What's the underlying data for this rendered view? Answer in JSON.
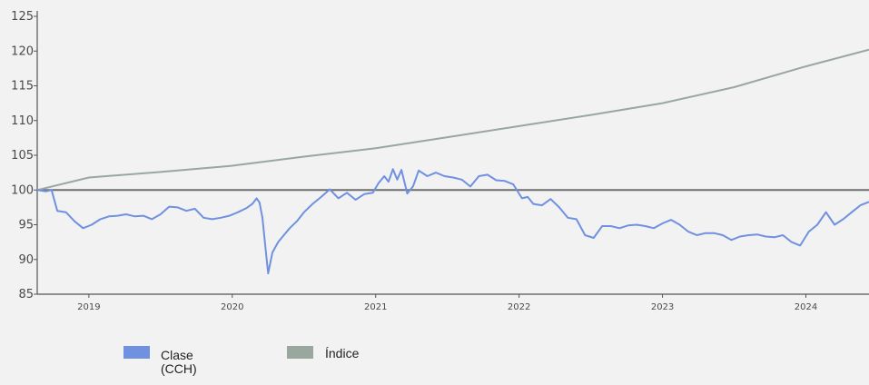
{
  "chart_data": {
    "type": "line",
    "title": "",
    "xlabel": "",
    "ylabel": "",
    "xlim": [
      2018.64,
      2024.44
    ],
    "ylim": [
      85,
      125
    ],
    "y_ticks": [
      "85",
      "90",
      "95",
      "100",
      "105",
      "110",
      "115",
      "120",
      "125"
    ],
    "x_ticks": [
      "2019",
      "2020",
      "2021",
      "2022",
      "2023",
      "2024"
    ],
    "x_tick_values": [
      2019,
      2020,
      2021,
      2022,
      2023,
      2024
    ],
    "grid": false,
    "legend_position": "bottom-left",
    "reference_line": 100,
    "series": [
      {
        "name": "Clase (CCH)",
        "color": "#7090e0",
        "x": [
          2018.64,
          2018.7,
          2018.74,
          2018.78,
          2018.84,
          2018.9,
          2018.96,
          2019.02,
          2019.08,
          2019.14,
          2019.2,
          2019.26,
          2019.32,
          2019.38,
          2019.44,
          2019.5,
          2019.56,
          2019.62,
          2019.68,
          2019.74,
          2019.8,
          2019.86,
          2019.92,
          2019.98,
          2020.04,
          2020.1,
          2020.14,
          2020.17,
          2020.19,
          2020.21,
          2020.23,
          2020.25,
          2020.28,
          2020.32,
          2020.36,
          2020.4,
          2020.45,
          2020.5,
          2020.56,
          2020.62,
          2020.68,
          2020.74,
          2020.8,
          2020.86,
          2020.92,
          2020.98,
          2021.02,
          2021.06,
          2021.09,
          2021.12,
          2021.15,
          2021.18,
          2021.22,
          2021.26,
          2021.3,
          2021.36,
          2021.42,
          2021.48,
          2021.54,
          2021.6,
          2021.66,
          2021.72,
          2021.78,
          2021.84,
          2021.9,
          2021.96,
          2022.02,
          2022.06,
          2022.1,
          2022.16,
          2022.22,
          2022.28,
          2022.34,
          2022.4,
          2022.46,
          2022.52,
          2022.58,
          2022.64,
          2022.7,
          2022.76,
          2022.82,
          2022.88,
          2022.94,
          2023.0,
          2023.06,
          2023.12,
          2023.18,
          2023.24,
          2023.3,
          2023.36,
          2023.42,
          2023.48,
          2023.54,
          2023.6,
          2023.66,
          2023.72,
          2023.78,
          2023.84,
          2023.9,
          2023.96,
          2024.02,
          2024.08,
          2024.14,
          2024.2,
          2024.26,
          2024.32,
          2024.38,
          2024.44
        ],
        "values": [
          100.0,
          99.8,
          100.0,
          97.0,
          96.8,
          95.5,
          94.5,
          95.0,
          95.8,
          96.2,
          96.3,
          96.5,
          96.2,
          96.3,
          95.8,
          96.5,
          97.6,
          97.5,
          97.0,
          97.3,
          96.0,
          95.8,
          96.0,
          96.3,
          96.8,
          97.4,
          98.0,
          98.8,
          98.2,
          96.0,
          92.0,
          88.0,
          91.0,
          92.5,
          93.5,
          94.5,
          95.5,
          96.8,
          98.0,
          99.0,
          100.1,
          98.8,
          99.6,
          98.6,
          99.4,
          99.6,
          101.0,
          102.0,
          101.2,
          103.0,
          101.5,
          102.9,
          99.5,
          100.5,
          102.8,
          102.0,
          102.5,
          102.0,
          101.8,
          101.5,
          100.5,
          102.0,
          102.2,
          101.4,
          101.3,
          100.8,
          98.8,
          99.0,
          98.0,
          97.8,
          98.7,
          97.5,
          96.0,
          95.8,
          93.5,
          93.1,
          94.8,
          94.8,
          94.5,
          94.9,
          95.0,
          94.8,
          94.5,
          95.2,
          95.7,
          95.0,
          94.0,
          93.5,
          93.8,
          93.8,
          93.5,
          92.8,
          93.3,
          93.5,
          93.6,
          93.3,
          93.2,
          93.5,
          92.5,
          92.0,
          94.0,
          95.0,
          96.8,
          95.0,
          95.8,
          96.8,
          97.8,
          98.3
        ]
      },
      {
        "name": "Índice",
        "color": "#9aa79e",
        "x": [
          2018.64,
          2019.0,
          2019.5,
          2020.0,
          2020.5,
          2021.0,
          2021.5,
          2022.0,
          2022.5,
          2023.0,
          2023.5,
          2024.0,
          2024.44
        ],
        "values": [
          100.0,
          101.8,
          102.6,
          103.5,
          104.8,
          106.0,
          107.6,
          109.2,
          110.8,
          112.5,
          114.8,
          117.8,
          120.2
        ]
      }
    ]
  },
  "legend": [
    {
      "label_line1": "Clase",
      "label_line2": "(CCH)",
      "color": "#7090e0"
    },
    {
      "label_line1": "Índice",
      "label_line2": "",
      "color": "#9aa79e"
    }
  ]
}
